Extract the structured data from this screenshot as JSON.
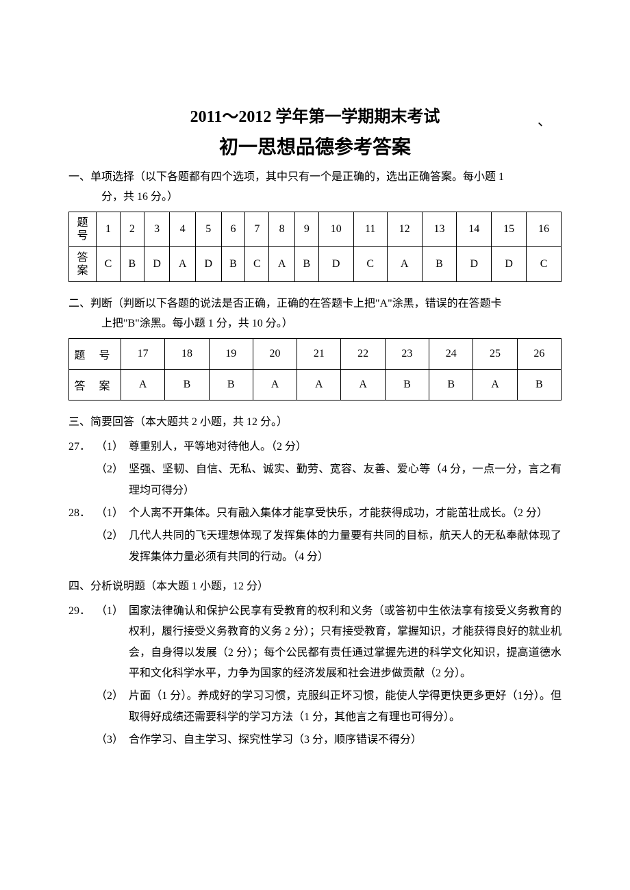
{
  "title_main": "2011～2012 学年第一学期期末考试",
  "title_sub": "初一思想品德参考答案",
  "section1": {
    "heading_line1": "一、单项选择（以下各题都有四个选项，其中只有一个是正确的，选出正确答案。每小题 1",
    "heading_line2": "分，共 16 分。）",
    "row_header_num": "题号",
    "row_header_ans": "答案",
    "numbers": [
      "1",
      "2",
      "3",
      "4",
      "5",
      "6",
      "7",
      "8",
      "9",
      "10",
      "11",
      "12",
      "13",
      "14",
      "15",
      "16"
    ],
    "answers": [
      "C",
      "B",
      "D",
      "A",
      "D",
      "B",
      "C",
      "A",
      "B",
      "D",
      "C",
      "A",
      "B",
      "D",
      "D",
      "C"
    ]
  },
  "section2": {
    "heading_line1": "二、判断（判断以下各题的说法是否正确，正确的在答题卡上把\"A\"涂黑，错误的在答题卡",
    "heading_line2": "上把\"B\"涂黑。每小题 1 分，共 10 分。）",
    "row_header_num": "题 号",
    "row_header_ans": "答 案",
    "numbers": [
      "17",
      "18",
      "19",
      "20",
      "21",
      "22",
      "23",
      "24",
      "25",
      "26"
    ],
    "answers": [
      "A",
      "B",
      "B",
      "A",
      "A",
      "A",
      "B",
      "B",
      "A",
      "B"
    ]
  },
  "section3": {
    "heading": "三、简要回答（本大题共 2 小题，共 12 分。）",
    "q27_num": "27．",
    "q27_1_sub": "（1）",
    "q27_1_text": "尊重别人，平等地对待他人。（2 分）",
    "q27_2_sub": "（2）",
    "q27_2_text": "坚强、坚韧、自信、无私、诚实、勤劳、宽容、友善、爱心等（4 分，一点一分，言之有理均可得分）",
    "q28_num": "28．",
    "q28_1_sub": "（1）",
    "q28_1_text": "个人离不开集体。只有融入集体才能享受快乐，才能获得成功，才能茁壮成长。（2 分）",
    "q28_2_sub": "（2）",
    "q28_2_text": "几代人共同的飞天理想体现了发挥集体的力量要有共同的目标，航天人的无私奉献体现了发挥集体力量必须有共同的行动。（4 分）"
  },
  "section4": {
    "heading": "四、分析说明题（本大题 1 小题，12 分）",
    "q29_num": "29．",
    "q29_1_sub": "（1）",
    "q29_1_text": "国家法律确认和保护公民享有受教育的权利和义务（或答初中生依法享有接受义务教育的权利，履行接受义务教育的义务 2 分）；只有接受教育，掌握知识，才能获得良好的就业机会，自身得以发展（2 分）；每个公民都有责任通过掌握先进的科学文化知识，提高道德水平和文化科学水平，力争为国家的经济发展和社会进步做贡献（2 分）。",
    "q29_2_sub": "（2）",
    "q29_2_text": "片面（1 分）。养成好的学习习惯，克服纠正坏习惯，能使人学得更快更多更好（1分）。但取得好成绩还需要科学的学习方法（1 分，其他言之有理也可得分）。",
    "q29_3_sub": "（3）",
    "q29_3_text": "合作学习、自主学习、探究性学习（3 分，顺序错误不得分）"
  },
  "tick": "、"
}
